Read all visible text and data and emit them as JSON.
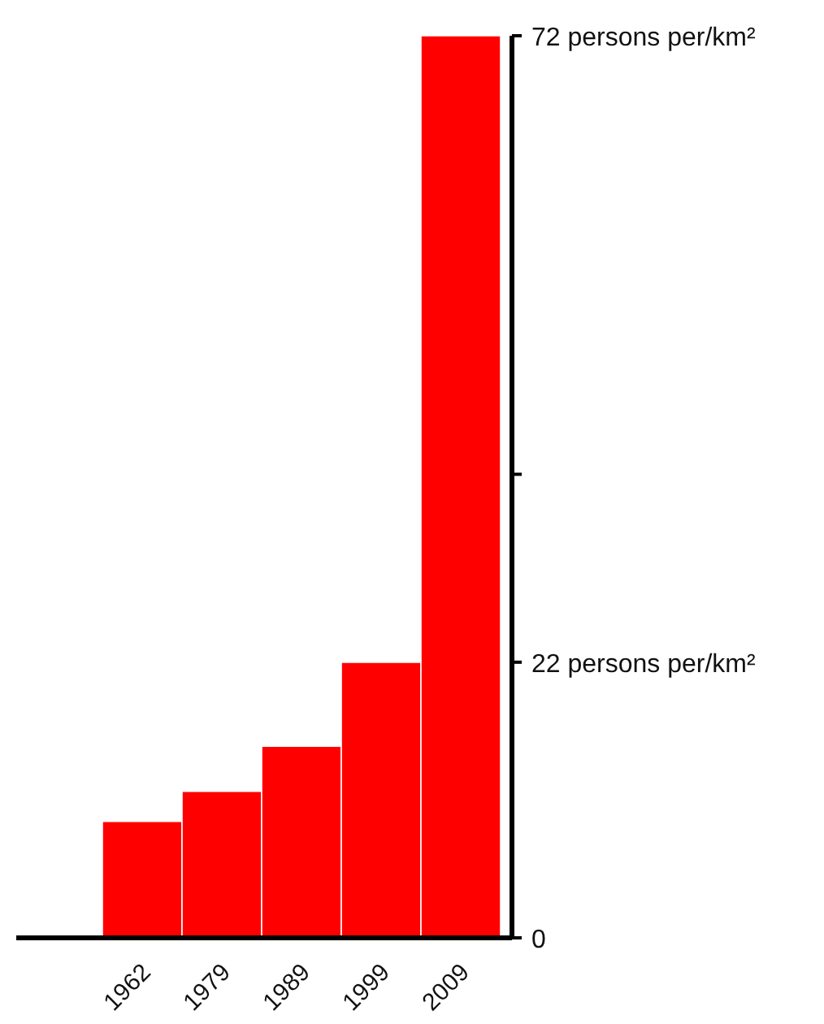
{
  "chart_data": {
    "type": "bar",
    "categories": [
      "1962",
      "1979",
      "1989",
      "1999",
      "2009"
    ],
    "values": [
      9.3,
      11.7,
      15.3,
      22,
      72
    ],
    "color": "#ff0000",
    "ylim": [
      0,
      72
    ],
    "yticks": [
      0,
      {
        "value": 22,
        "label": "22 persons per/km²"
      },
      {
        "value": 37,
        "label": null
      },
      {
        "value": 72,
        "label": "72 persons per/km²"
      }
    ]
  }
}
